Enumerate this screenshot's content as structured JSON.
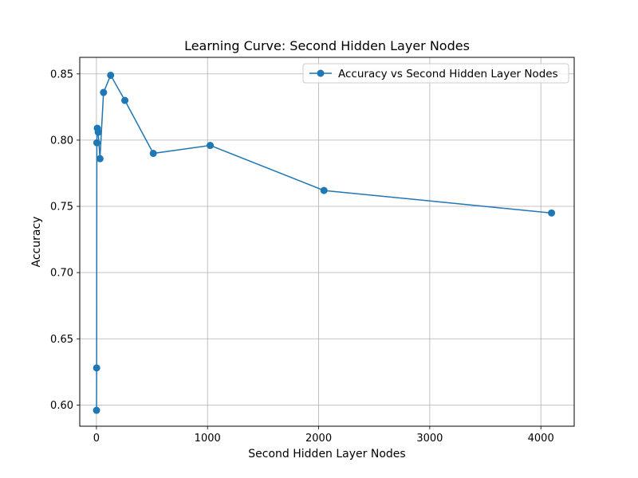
{
  "chart_data": {
    "type": "line",
    "title": "Learning Curve: Second Hidden Layer Nodes",
    "xlabel": "Second Hidden Layer Nodes",
    "ylabel": "Accuracy",
    "xlim": [
      -150,
      4300
    ],
    "ylim": [
      0.584,
      0.8625
    ],
    "xticks": [
      0,
      1000,
      2000,
      3000,
      4000
    ],
    "yticks": [
      0.6,
      0.65,
      0.7,
      0.75,
      0.8,
      0.85
    ],
    "xtick_labels": [
      "0",
      "1000",
      "2000",
      "3000",
      "4000"
    ],
    "ytick_labels": [
      "0.60",
      "0.65",
      "0.70",
      "0.75",
      "0.80",
      "0.85"
    ],
    "grid": true,
    "legend_position": "top-right",
    "series": [
      {
        "name": "Accuracy vs Second Hidden Layer Nodes",
        "color": "#1f77b4",
        "marker": "circle",
        "x": [
          1,
          2,
          4,
          8,
          16,
          32,
          64,
          128,
          256,
          512,
          1024,
          2048,
          4096
        ],
        "y": [
          0.596,
          0.628,
          0.798,
          0.809,
          0.806,
          0.786,
          0.836,
          0.849,
          0.83,
          0.79,
          0.796,
          0.762,
          0.745
        ]
      }
    ]
  }
}
